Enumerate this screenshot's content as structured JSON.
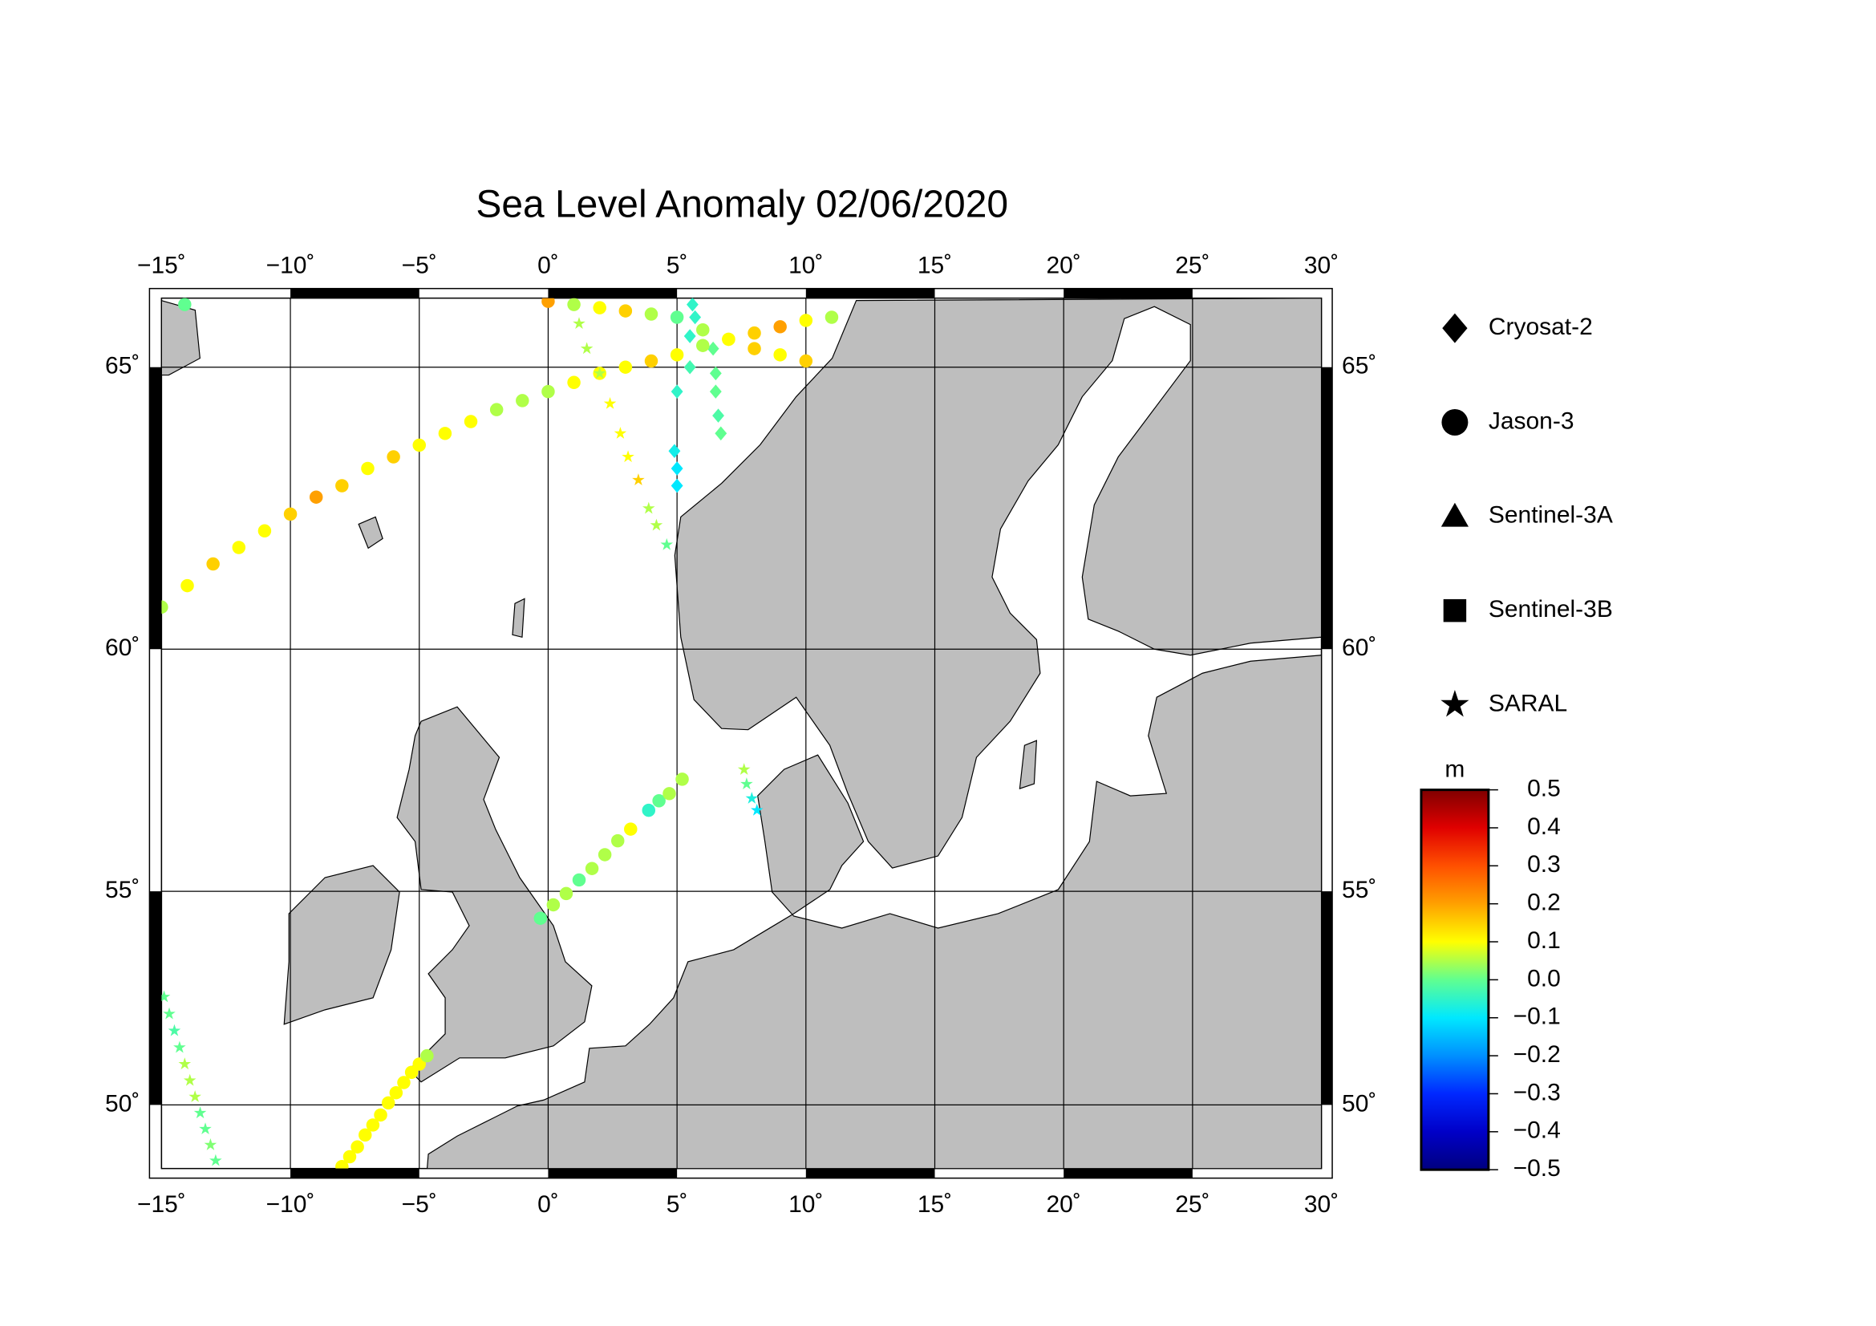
{
  "chart_data": {
    "type": "map",
    "title": "Sea Level Anomaly 02/06/2020",
    "projection": "mercator",
    "xlim": [
      -15,
      30
    ],
    "ylim": [
      48.4,
      66.1
    ],
    "xticks": [
      {
        "value": -15,
        "label": "−15˚"
      },
      {
        "value": -10,
        "label": "−10˚"
      },
      {
        "value": -5,
        "label": "−5˚"
      },
      {
        "value": 0,
        "label": "0˚"
      },
      {
        "value": 5,
        "label": "5˚"
      },
      {
        "value": 10,
        "label": "10˚"
      },
      {
        "value": 15,
        "label": "15˚"
      },
      {
        "value": 20,
        "label": "20˚"
      },
      {
        "value": 25,
        "label": "25˚"
      },
      {
        "value": 30,
        "label": "30˚"
      }
    ],
    "yticks": [
      {
        "value": 50,
        "label": "50˚"
      },
      {
        "value": 55,
        "label": "55˚"
      },
      {
        "value": 60,
        "label": "60˚"
      },
      {
        "value": 65,
        "label": "65˚"
      }
    ],
    "grid": true,
    "land_color": "#bebebe",
    "series": [
      {
        "name": "Cryosat-2",
        "marker": "diamond",
        "x": [
          5.6,
          5.7,
          5.5,
          5.5,
          5.0,
          4.9,
          5.0,
          5.0,
          6.4,
          6.5,
          6.5,
          6.6,
          6.7
        ],
        "y": [
          66.0,
          65.8,
          65.5,
          65.0,
          64.6,
          63.6,
          63.3,
          63.0,
          65.3,
          64.9,
          64.6,
          64.2,
          63.9
        ],
        "values": [
          -0.05,
          -0.05,
          -0.05,
          -0.03,
          -0.05,
          -0.08,
          -0.1,
          -0.1,
          0.0,
          0.0,
          0.0,
          -0.02,
          0.0
        ]
      },
      {
        "name": "Jason-3",
        "marker": "circle",
        "x": [
          -15,
          -14,
          -13,
          -12,
          -11,
          -10,
          -9,
          -8,
          -7,
          -6,
          -5,
          -4,
          -3,
          -2,
          -1,
          0,
          1,
          2,
          3,
          4,
          5,
          6,
          7,
          8,
          9,
          10,
          11,
          0,
          1,
          2,
          3,
          4,
          5,
          6,
          7,
          8,
          9,
          10,
          -0.3,
          0.2,
          0.7,
          1.2,
          1.7,
          2.2,
          2.7,
          3.2,
          3.9,
          4.3,
          4.7,
          5.2,
          -8.0,
          -7.7,
          -7.4,
          -7.1,
          -6.8,
          -6.5,
          -6.2,
          -5.9,
          -5.6,
          -5.3,
          -5.0,
          -4.7,
          -14.1
        ],
        "y": [
          60.8,
          61.2,
          61.6,
          61.9,
          62.2,
          62.5,
          62.8,
          63.0,
          63.3,
          63.5,
          63.7,
          63.9,
          64.1,
          64.3,
          64.45,
          64.6,
          64.75,
          64.9,
          65.0,
          65.1,
          65.2,
          65.35,
          65.45,
          65.55,
          65.65,
          65.75,
          65.8,
          66.05,
          66.0,
          65.95,
          65.9,
          65.85,
          65.8,
          65.6,
          65.45,
          65.3,
          65.2,
          65.1,
          54.4,
          54.7,
          54.95,
          55.25,
          55.5,
          55.8,
          56.1,
          56.35,
          56.75,
          56.95,
          57.1,
          57.4,
          48.45,
          48.7,
          48.95,
          49.25,
          49.5,
          49.75,
          50.05,
          50.3,
          50.55,
          50.8,
          51.0,
          51.2,
          66.0
        ],
        "values": [
          0.05,
          0.1,
          0.15,
          0.1,
          0.1,
          0.15,
          0.2,
          0.15,
          0.1,
          0.15,
          0.1,
          0.1,
          0.1,
          0.05,
          0.05,
          0.05,
          0.1,
          0.1,
          0.1,
          0.15,
          0.1,
          0.05,
          0.1,
          0.15,
          0.2,
          0.1,
          0.05,
          0.2,
          0.05,
          0.1,
          0.15,
          0.05,
          0.0,
          0.05,
          0.1,
          0.15,
          0.1,
          0.15,
          0.0,
          0.05,
          0.05,
          0.0,
          0.05,
          0.05,
          0.05,
          0.1,
          -0.05,
          0.0,
          0.05,
          0.05,
          0.1,
          0.1,
          0.1,
          0.1,
          0.1,
          0.1,
          0.1,
          0.1,
          0.1,
          0.1,
          0.1,
          0.05,
          0.0
        ]
      },
      {
        "name": "Sentinel-3A",
        "marker": "triangle",
        "x": [],
        "y": [],
        "values": []
      },
      {
        "name": "Sentinel-3B",
        "marker": "square",
        "x": [],
        "y": [],
        "values": []
      },
      {
        "name": "SARAL",
        "marker": "star",
        "x": [
          1.2,
          1.5,
          2.0,
          2.4,
          2.8,
          3.1,
          3.5,
          3.9,
          4.2,
          4.6,
          7.6,
          7.7,
          7.9,
          8.1,
          -14.9,
          -14.7,
          -14.5,
          -14.3,
          -14.1,
          -13.9,
          -13.7,
          -13.5,
          -13.3,
          -13.1,
          -12.9
        ],
        "y": [
          65.7,
          65.3,
          64.9,
          64.4,
          63.9,
          63.5,
          63.1,
          62.6,
          62.3,
          61.95,
          57.6,
          57.3,
          57.0,
          56.75,
          52.6,
          52.2,
          51.8,
          51.4,
          51.0,
          50.6,
          50.2,
          49.8,
          49.4,
          49.0,
          48.6
        ],
        "values": [
          0.05,
          0.05,
          0.05,
          0.1,
          0.1,
          0.1,
          0.15,
          0.05,
          0.05,
          0.0,
          0.05,
          0.0,
          -0.07,
          -0.1,
          0.0,
          0.0,
          -0.02,
          0.0,
          0.05,
          0.05,
          0.05,
          0.0,
          0.0,
          0.02,
          0.0
        ]
      }
    ],
    "colorbar": {
      "label": "m",
      "lim": [
        -0.5,
        0.5
      ],
      "colors": [
        "#00007f",
        "#0000c8",
        "#0028ff",
        "#0090ff",
        "#00e8ff",
        "#60ff90",
        "#ffff00",
        "#ffa000",
        "#ff5000",
        "#e00000",
        "#800000"
      ],
      "ticks": [
        0.5,
        0.4,
        0.3,
        0.2,
        0.1,
        {
          "value": 0,
          "label": "0.0"
        },
        {
          "value": -0.1,
          "label": "−0.1"
        },
        {
          "value": -0.2,
          "label": "−0.2"
        },
        {
          "value": -0.3,
          "label": "−0.3"
        },
        {
          "value": -0.4,
          "label": "−0.4"
        },
        {
          "value": -0.5,
          "label": "−0.5"
        }
      ]
    }
  }
}
